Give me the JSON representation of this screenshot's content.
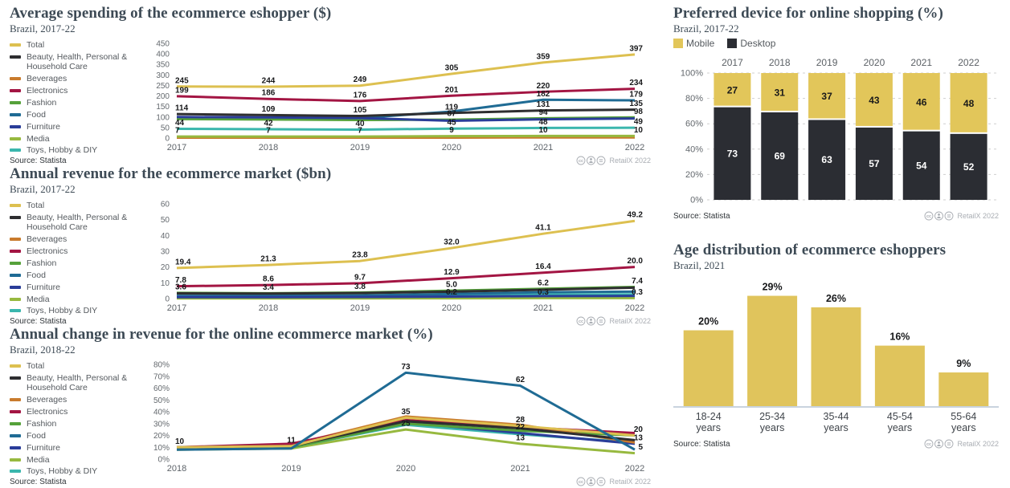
{
  "chart_data": [
    {
      "id": "average-spending",
      "type": "line",
      "title": "Average spending of the ecommerce eshopper ($)",
      "subtitle": "Brazil, 2017-22",
      "source": "Source: Statista",
      "attribution": "RetailX 2022",
      "x": [
        "2017",
        "2018",
        "2019",
        "2020",
        "2021",
        "2022"
      ],
      "ylim": [
        0,
        450
      ],
      "ytick_values": [
        0,
        50,
        100,
        150,
        200,
        250,
        300,
        350,
        400,
        450
      ],
      "ytick_labels": [
        "0",
        "50",
        "100",
        "150",
        "200",
        "250",
        "300",
        "350",
        "400",
        "450"
      ],
      "grid": false,
      "legend_position": "left",
      "series": [
        {
          "name": "Total",
          "color": "#ddc050",
          "z": 9,
          "values": [
            245,
            244,
            249,
            305,
            359,
            397
          ],
          "labels": [
            "245",
            "244",
            "249",
            "305",
            "359",
            "397"
          ]
        },
        {
          "name": "Beauty, Health, Personal & Household Care",
          "color": "#2e2e30",
          "z": 7,
          "values": [
            114,
            109,
            105,
            119,
            131,
            135
          ],
          "labels": [
            "114",
            "109",
            "105",
            "119",
            "131",
            "135"
          ]
        },
        {
          "name": "Beverages",
          "color": "#c97b2d",
          "z": 1,
          "values": [
            2,
            2,
            2,
            2,
            3,
            3
          ],
          "labels": null
        },
        {
          "name": "Electronics",
          "color": "#a31543",
          "z": 8,
          "values": [
            199,
            186,
            176,
            201,
            220,
            234
          ],
          "labels": [
            "199",
            "186",
            "176",
            "201",
            "220",
            "234"
          ]
        },
        {
          "name": "Fashion",
          "color": "#55a13a",
          "z": 5,
          "values": [
            90,
            88,
            86,
            87,
            94,
            98
          ],
          "labels": [
            null,
            null,
            null,
            "87",
            "94",
            "98"
          ]
        },
        {
          "name": "Food",
          "color": "#1f6b94",
          "z": 4,
          "values": [
            98,
            96,
            95,
            126,
            182,
            179
          ],
          "labels": [
            null,
            null,
            null,
            null,
            "182",
            "179"
          ]
        },
        {
          "name": "Furniture",
          "color": "#2a3d99",
          "z": 6,
          "values": [
            100,
            98,
            95,
            82,
            89,
            93
          ],
          "labels": null
        },
        {
          "name": "Media",
          "color": "#97b93f",
          "z": 2,
          "values": [
            7,
            7,
            7,
            9,
            10,
            10
          ],
          "labels": [
            "7",
            "7",
            "7",
            "9",
            "10",
            "10"
          ]
        },
        {
          "name": "Toys, Hobby & DIY",
          "color": "#3ab6ad",
          "z": 3,
          "values": [
            44,
            42,
            40,
            45,
            48,
            49
          ],
          "labels": [
            "44",
            "42",
            "40",
            "45",
            "48",
            "49"
          ]
        }
      ]
    },
    {
      "id": "annual-revenue",
      "type": "line",
      "title": "Annual revenue for the ecommerce market ($bn)",
      "subtitle": "Brazil, 2017-22",
      "source": "Source: Statista",
      "attribution": "RetailX 2022",
      "x": [
        "2017",
        "2018",
        "2019",
        "2020",
        "2021",
        "2022"
      ],
      "ylim": [
        0,
        60
      ],
      "ytick_values": [
        0,
        10,
        20,
        30,
        40,
        50,
        60
      ],
      "ytick_labels": [
        "0",
        "10",
        "20",
        "30",
        "40",
        "50",
        "60"
      ],
      "grid": false,
      "legend_position": "left",
      "series": [
        {
          "name": "Total",
          "color": "#ddc050",
          "z": 9,
          "values": [
            19.4,
            21.3,
            23.8,
            32.0,
            41.1,
            49.2
          ],
          "labels": [
            "19.4",
            "21.3",
            "23.8",
            "32.0",
            "41.1",
            "49.2"
          ]
        },
        {
          "name": "Beauty, Health, Personal & Household Care",
          "color": "#2e2e30",
          "z": 7,
          "values": [
            3.3,
            3.2,
            3.5,
            4.4,
            5.6,
            6.9
          ],
          "labels": null
        },
        {
          "name": "Beverages",
          "color": "#c97b2d",
          "z": 1,
          "values": [
            0.3,
            0.3,
            0.3,
            0.4,
            0.5,
            0.6
          ],
          "labels": null
        },
        {
          "name": "Electronics",
          "color": "#a31543",
          "z": 8,
          "values": [
            7.8,
            8.6,
            9.7,
            12.9,
            16.4,
            20.0
          ],
          "labels": [
            "7.8",
            "8.6",
            "9.7",
            "12.9",
            "16.4",
            "20.0"
          ]
        },
        {
          "name": "Fashion",
          "color": "#55a13a",
          "z": 5,
          "values": [
            3.6,
            3.4,
            3.8,
            5.0,
            6.2,
            7.4
          ],
          "labels": [
            "3.6",
            "3.4",
            "3.8",
            "5.0",
            "6.2",
            "7.4"
          ]
        },
        {
          "name": "Food",
          "color": "#1f6b94",
          "z": 4,
          "values": [
            1.7,
            1.8,
            2.0,
            2.9,
            4.0,
            4.4
          ],
          "labels": null
        },
        {
          "name": "Furniture",
          "color": "#2a3d99",
          "z": 6,
          "values": [
            0.9,
            0.9,
            1.0,
            1.3,
            1.6,
            1.7
          ],
          "labels": null
        },
        {
          "name": "Media",
          "color": "#97b93f",
          "z": 2,
          "values": [
            0.1,
            0.1,
            0.15,
            0.2,
            0.3,
            0.3
          ],
          "labels": [
            null,
            null,
            null,
            "0.2",
            "0.3",
            "0.3"
          ]
        },
        {
          "name": "Toys, Hobby & DIY",
          "color": "#3ab6ad",
          "z": 3,
          "values": [
            1.3,
            1.3,
            1.4,
            2.0,
            2.5,
            2.7
          ],
          "labels": null
        }
      ]
    },
    {
      "id": "annual-change",
      "type": "line",
      "title": "Annual change in revenue for the online ecommerce market (%)",
      "subtitle": "Brazil, 2018-22",
      "source": "Source: Statista",
      "attribution": "RetailX 2022",
      "x": [
        "2018",
        "2019",
        "2020",
        "2021",
        "2022"
      ],
      "ylim": [
        0,
        80
      ],
      "ytick_values": [
        0,
        10,
        20,
        30,
        40,
        50,
        60,
        70,
        80
      ],
      "ytick_labels": [
        "0%",
        "10%",
        "20%",
        "30%",
        "40%",
        "50%",
        "60%",
        "70%",
        "80%"
      ],
      "grid": false,
      "legend_position": "left",
      "series": [
        {
          "name": "Total",
          "color": "#ddc050",
          "z": 8,
          "values": [
            10,
            11,
            35,
            28,
            20
          ],
          "labels": [
            "10",
            "11",
            "35",
            "28",
            "20"
          ]
        },
        {
          "name": "Beauty, Health, Personal & Household Care",
          "color": "#2e2e30",
          "z": 7,
          "values": [
            10,
            11,
            32,
            26,
            16
          ],
          "labels": null
        },
        {
          "name": "Beverages",
          "color": "#c97b2d",
          "z": 5,
          "values": [
            10,
            12,
            36,
            29,
            14
          ],
          "labels": null
        },
        {
          "name": "Electronics",
          "color": "#a31543",
          "z": 6,
          "values": [
            10,
            13,
            33,
            27,
            22
          ],
          "labels": null
        },
        {
          "name": "Fashion",
          "color": "#55a13a",
          "z": 4,
          "values": [
            9,
            10,
            30,
            24,
            20
          ],
          "labels": null
        },
        {
          "name": "Food",
          "color": "#1f6b94",
          "z": 9,
          "values": [
            8,
            9,
            73,
            62,
            8
          ],
          "labels": [
            null,
            null,
            "73",
            "62",
            null
          ]
        },
        {
          "name": "Furniture",
          "color": "#2a3d99",
          "z": 3,
          "values": [
            9,
            10,
            31,
            22,
            13
          ],
          "labels": [
            null,
            null,
            null,
            "22",
            "13"
          ]
        },
        {
          "name": "Media",
          "color": "#97b93f",
          "z": 1,
          "values": [
            8,
            9,
            25,
            13,
            5
          ],
          "labels": [
            null,
            null,
            "25",
            "13",
            "5"
          ]
        },
        {
          "name": "Toys, Hobby & DIY",
          "color": "#3ab6ad",
          "z": 2,
          "values": [
            9,
            10,
            29,
            21,
            14
          ],
          "labels": null
        }
      ]
    },
    {
      "id": "preferred-device",
      "type": "stacked-bar",
      "title": "Preferred device for online shopping (%)",
      "subtitle": "Brazil, 2017-22",
      "source": "Source: Statista",
      "attribution": "RetailX 2022",
      "categories": [
        "2017",
        "2018",
        "2019",
        "2020",
        "2021",
        "2022"
      ],
      "ylim": [
        0,
        100
      ],
      "ytick_labels": [
        "0%",
        "20%",
        "40%",
        "60%",
        "80%",
        "100%"
      ],
      "ytick_values": [
        0,
        20,
        40,
        60,
        80,
        100
      ],
      "grid": true,
      "legend_position": "top",
      "series": [
        {
          "name": "Mobile",
          "color": "#e2c65a",
          "values": [
            27,
            31,
            37,
            43,
            46,
            48
          ]
        },
        {
          "name": "Desktop",
          "color": "#2b2d33",
          "values": [
            73,
            69,
            63,
            57,
            54,
            52
          ]
        }
      ]
    },
    {
      "id": "age-distribution",
      "type": "bar",
      "title": "Age distribution of ecommerce eshoppers",
      "subtitle": "Brazil, 2021",
      "source": "Source: Statista",
      "attribution": "RetailX 2022",
      "categories": [
        "18-24",
        "25-34",
        "35-44",
        "45-54",
        "55-64"
      ],
      "category_suffix": "years",
      "values": [
        20,
        29,
        26,
        16,
        9
      ],
      "labels": [
        "20%",
        "29%",
        "26%",
        "16%",
        "9%"
      ],
      "bar_color": "#e0c45c",
      "ylim": [
        0,
        31
      ],
      "grid": false
    }
  ]
}
